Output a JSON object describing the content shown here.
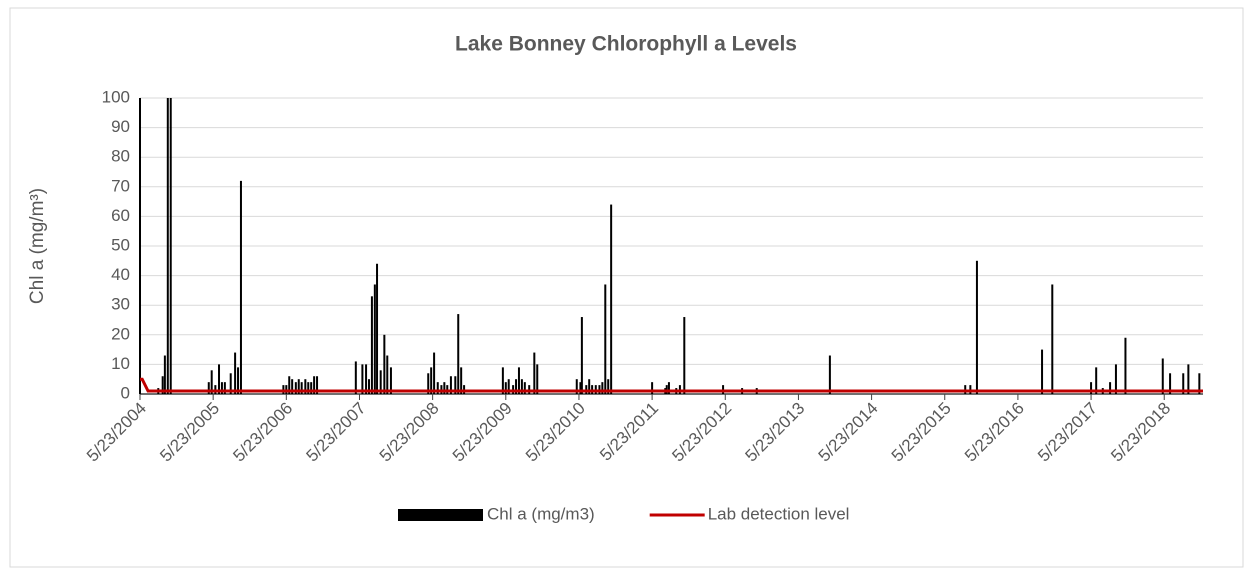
{
  "chart_data": {
    "type": "bar",
    "title": "Lake Bonney Chlorophyll a Levels",
    "y_label": "Chl a (mg/m³)",
    "xlim": [
      2004.39,
      2018.92
    ],
    "xticks": [
      {
        "value": 2004.39,
        "label": "5/23/2004"
      },
      {
        "value": 2005.39,
        "label": "5/23/2005"
      },
      {
        "value": 2006.39,
        "label": "5/23/2006"
      },
      {
        "value": 2007.39,
        "label": "5/23/2007"
      },
      {
        "value": 2008.39,
        "label": "5/23/2008"
      },
      {
        "value": 2009.39,
        "label": "5/23/2009"
      },
      {
        "value": 2010.39,
        "label": "5/23/2010"
      },
      {
        "value": 2011.39,
        "label": "5/23/2011"
      },
      {
        "value": 2012.39,
        "label": "5/23/2012"
      },
      {
        "value": 2013.39,
        "label": "5/23/2013"
      },
      {
        "value": 2014.39,
        "label": "5/23/2014"
      },
      {
        "value": 2015.39,
        "label": "5/23/2015"
      },
      {
        "value": 2016.39,
        "label": "5/23/2016"
      },
      {
        "value": 2017.39,
        "label": "5/23/2017"
      },
      {
        "value": 2018.39,
        "label": "5/23/2018"
      }
    ],
    "ylim": [
      0,
      100
    ],
    "yticks": [
      0,
      10,
      20,
      30,
      40,
      50,
      60,
      70,
      80,
      90,
      100
    ],
    "grid": true,
    "legend": "bottom",
    "series": [
      {
        "name": "Chl a (mg/m3)",
        "color": "#000000",
        "type": "bar",
        "x": [
          2004.39,
          2004.64,
          2004.7,
          2004.73,
          2004.77,
          2004.81,
          2005.33,
          2005.37,
          2005.42,
          2005.47,
          2005.51,
          2005.55,
          2005.63,
          2005.69,
          2005.73,
          2005.77,
          2006.35,
          2006.39,
          2006.43,
          2006.47,
          2006.52,
          2006.56,
          2006.6,
          2006.65,
          2006.69,
          2006.73,
          2006.77,
          2006.81,
          2007.34,
          2007.43,
          2007.48,
          2007.52,
          2007.56,
          2007.6,
          2007.63,
          2007.68,
          2007.73,
          2007.77,
          2007.82,
          2008.33,
          2008.37,
          2008.41,
          2008.46,
          2008.51,
          2008.55,
          2008.59,
          2008.64,
          2008.7,
          2008.74,
          2008.78,
          2008.82,
          2009.35,
          2009.39,
          2009.43,
          2009.49,
          2009.53,
          2009.57,
          2009.61,
          2009.65,
          2009.71,
          2009.78,
          2009.82,
          2010.36,
          2010.41,
          2010.43,
          2010.49,
          2010.53,
          2010.57,
          2010.62,
          2010.67,
          2010.71,
          2010.75,
          2010.79,
          2010.83,
          2011.39,
          2011.57,
          2011.59,
          2011.62,
          2011.72,
          2011.77,
          2011.83,
          2012.36,
          2012.62,
          2012.82,
          2013.82,
          2015.67,
          2015.74,
          2015.83,
          2016.72,
          2016.86,
          2017.39,
          2017.46,
          2017.55,
          2017.65,
          2017.73,
          2017.86,
          2018.37,
          2018.47,
          2018.65,
          2018.72,
          2018.87
        ],
        "values": [
          100,
          2,
          6,
          13,
          100,
          100,
          4,
          8,
          3,
          10,
          4,
          4,
          7,
          14,
          9,
          72,
          3,
          3,
          6,
          5,
          4,
          5,
          4,
          5,
          4,
          4,
          6,
          6,
          11,
          10,
          10,
          5,
          33,
          37,
          44,
          8,
          20,
          13,
          9,
          7,
          9,
          14,
          4,
          3,
          4,
          3,
          6,
          6,
          27,
          9,
          3,
          9,
          4,
          5,
          3,
          5,
          9,
          5,
          4,
          3,
          14,
          10,
          5,
          4,
          26,
          3,
          5,
          3,
          3,
          3,
          4,
          37,
          5,
          64,
          4,
          2,
          3,
          4,
          2,
          3,
          26,
          3,
          2,
          2,
          13,
          3,
          3,
          45,
          15,
          37,
          4,
          9,
          2,
          4,
          10,
          19,
          12,
          7,
          7,
          10,
          7
        ]
      },
      {
        "name": "Lab detection level",
        "color": "#c00000",
        "type": "line",
        "x": [
          2004.39,
          2004.42,
          2004.5,
          2018.92
        ],
        "values": [
          5,
          5,
          1,
          1
        ]
      }
    ]
  }
}
